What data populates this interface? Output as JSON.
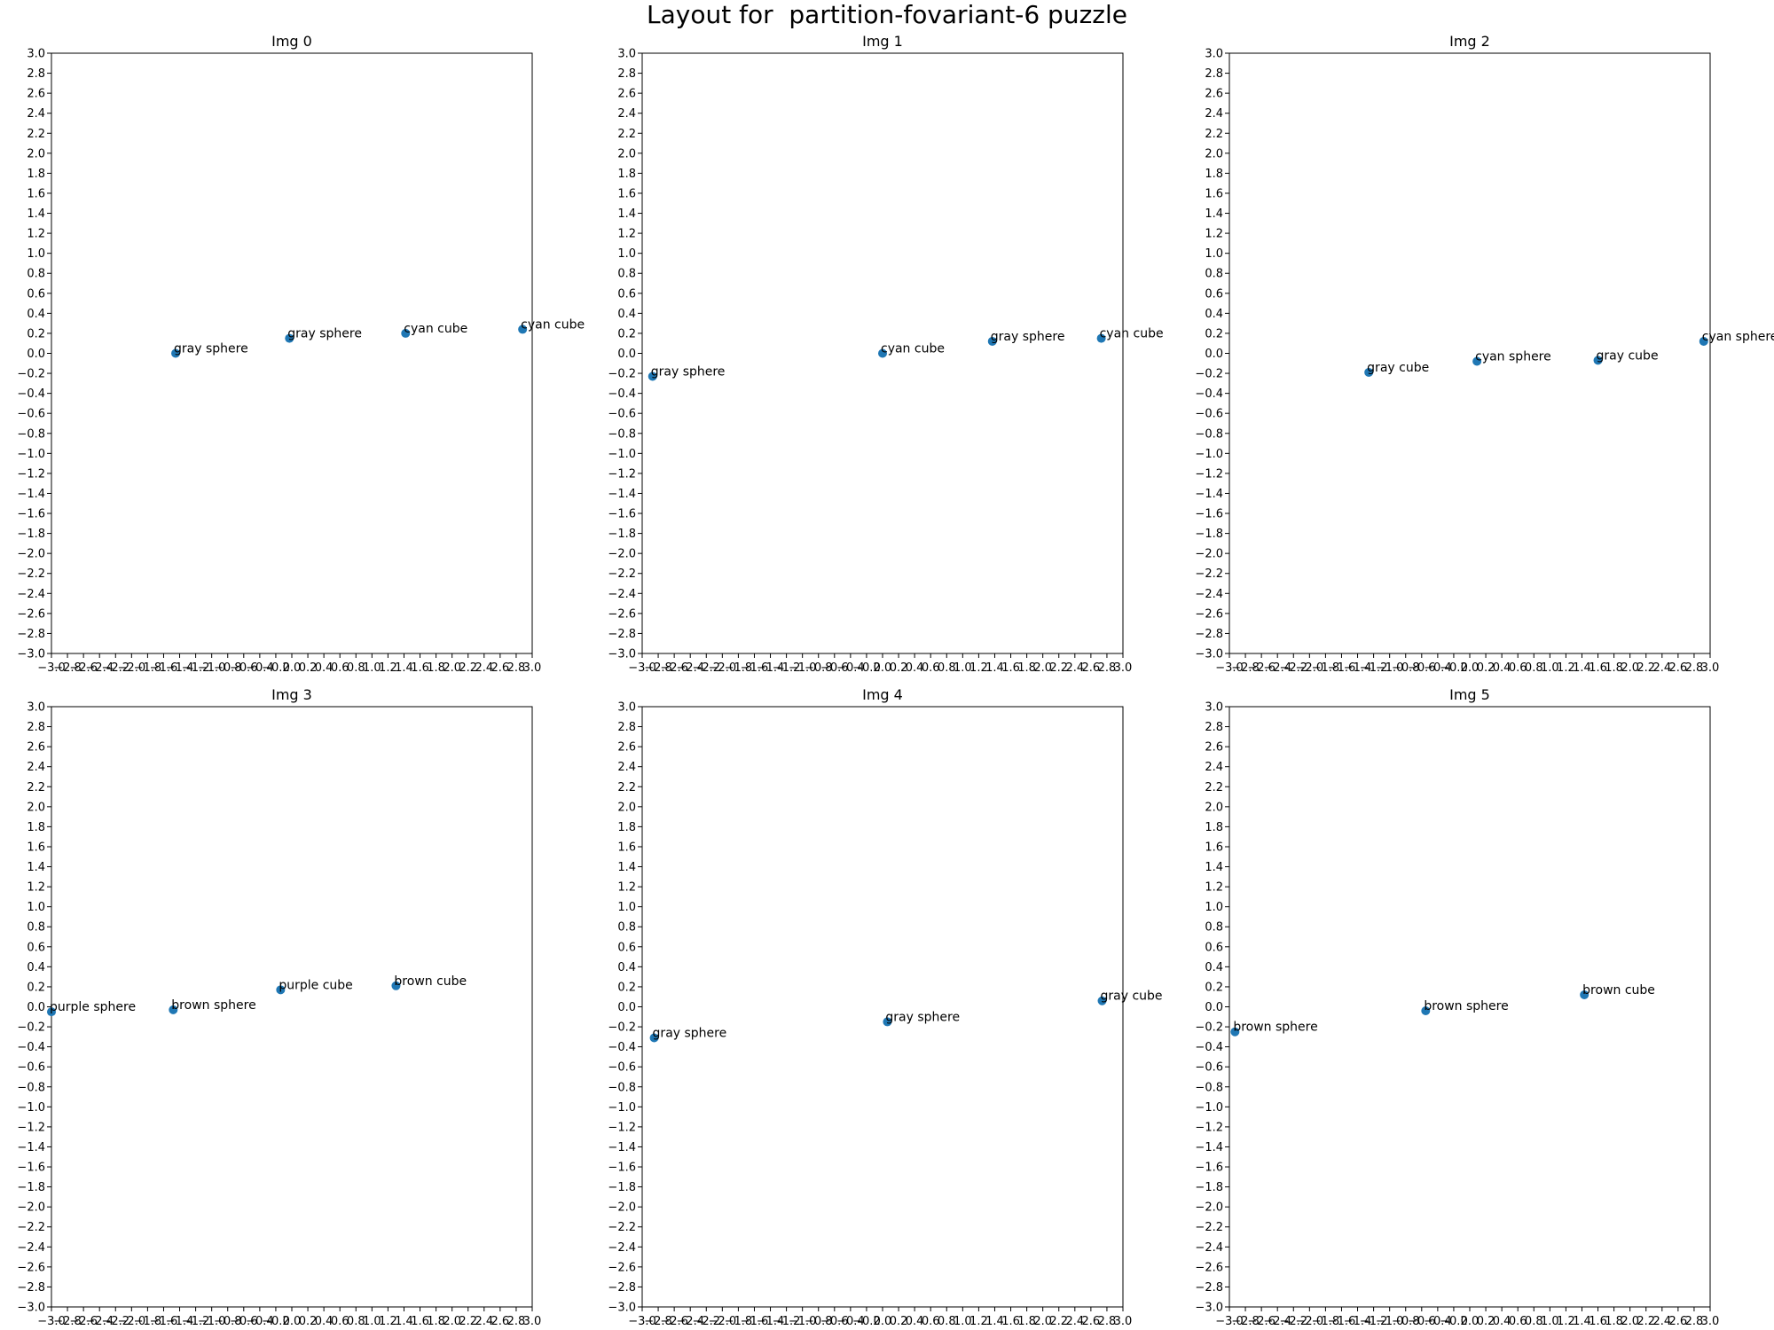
{
  "figure": {
    "title": "Layout for  partition-fovariant-6 puzzle"
  },
  "colors": {
    "marker": "#1f77b4",
    "axis": "#000000",
    "text": "#000000",
    "background": "#ffffff"
  },
  "chart_data": [
    {
      "type": "scatter",
      "title": "Img 0",
      "xlim": [
        -3.0,
        3.0
      ],
      "ylim": [
        -3.0,
        3.0
      ],
      "xticks": [
        "−3.0",
        "−2.8",
        "−2.6",
        "−2.4",
        "−2.2",
        "−2.0",
        "−1.8",
        "−1.6",
        "−1.4",
        "−1.2",
        "−1.0",
        "−0.8",
        "−0.6",
        "−0.4",
        "−0.2",
        "0.0",
        "0.2",
        "0.4",
        "0.6",
        "0.8",
        "1.0",
        "1.2",
        "1.4",
        "1.6",
        "1.8",
        "2.0",
        "2.2",
        "2.4",
        "2.6",
        "2.8",
        "3.0"
      ],
      "yticks": [
        "−3.0",
        "−2.8",
        "−2.6",
        "−2.4",
        "−2.2",
        "−2.0",
        "−1.8",
        "−1.6",
        "−1.4",
        "−1.2",
        "−1.0",
        "−0.8",
        "−0.6",
        "−0.4",
        "−0.2",
        "0.0",
        "0.2",
        "0.4",
        "0.6",
        "0.8",
        "1.0",
        "1.2",
        "1.4",
        "1.6",
        "1.8",
        "2.0",
        "2.2",
        "2.4",
        "2.6",
        "2.8",
        "3.0"
      ],
      "points": [
        {
          "x": -1.45,
          "y": 0.0,
          "label": "gray sphere"
        },
        {
          "x": -0.03,
          "y": 0.15,
          "label": "gray sphere"
        },
        {
          "x": 1.42,
          "y": 0.2,
          "label": "cyan cube"
        },
        {
          "x": 2.88,
          "y": 0.24,
          "label": "cyan cube"
        }
      ]
    },
    {
      "type": "scatter",
      "title": "Img 1",
      "xlim": [
        -3.0,
        3.0
      ],
      "ylim": [
        -3.0,
        3.0
      ],
      "xticks": [
        "−3.0",
        "−2.8",
        "−2.6",
        "−2.4",
        "−2.2",
        "−2.0",
        "−1.8",
        "−1.6",
        "−1.4",
        "−1.2",
        "−1.0",
        "−0.8",
        "−0.6",
        "−0.4",
        "−0.2",
        "0.0",
        "0.2",
        "0.4",
        "0.6",
        "0.8",
        "1.0",
        "1.2",
        "1.4",
        "1.6",
        "1.8",
        "2.0",
        "2.2",
        "2.4",
        "2.6",
        "2.8",
        "3.0"
      ],
      "yticks": [
        "−3.0",
        "−2.8",
        "−2.6",
        "−2.4",
        "−2.2",
        "−2.0",
        "−1.8",
        "−1.6",
        "−1.4",
        "−1.2",
        "−1.0",
        "−0.8",
        "−0.6",
        "−0.4",
        "−0.2",
        "0.0",
        "0.2",
        "0.4",
        "0.6",
        "0.8",
        "1.0",
        "1.2",
        "1.4",
        "1.6",
        "1.8",
        "2.0",
        "2.2",
        "2.4",
        "2.6",
        "2.8",
        "3.0"
      ],
      "points": [
        {
          "x": -2.87,
          "y": -0.23,
          "label": "gray sphere"
        },
        {
          "x": 0.0,
          "y": 0.0,
          "label": "cyan cube"
        },
        {
          "x": 1.37,
          "y": 0.12,
          "label": "gray sphere"
        },
        {
          "x": 2.73,
          "y": 0.15,
          "label": "cyan cube"
        }
      ]
    },
    {
      "type": "scatter",
      "title": "Img 2",
      "xlim": [
        -3.0,
        3.0
      ],
      "ylim": [
        -3.0,
        3.0
      ],
      "xticks": [
        "−3.0",
        "−2.8",
        "−2.6",
        "−2.4",
        "−2.2",
        "−2.0",
        "−1.8",
        "−1.6",
        "−1.4",
        "−1.2",
        "−1.0",
        "−0.8",
        "−0.6",
        "−0.4",
        "−0.2",
        "0.0",
        "0.2",
        "0.4",
        "0.6",
        "0.8",
        "1.0",
        "1.2",
        "1.4",
        "1.6",
        "1.8",
        "2.0",
        "2.2",
        "2.4",
        "2.6",
        "2.8",
        "3.0"
      ],
      "yticks": [
        "−3.0",
        "−2.8",
        "−2.6",
        "−2.4",
        "−2.2",
        "−2.0",
        "−1.8",
        "−1.6",
        "−1.4",
        "−1.2",
        "−1.0",
        "−0.8",
        "−0.6",
        "−0.4",
        "−0.2",
        "0.0",
        "0.2",
        "0.4",
        "0.6",
        "0.8",
        "1.0",
        "1.2",
        "1.4",
        "1.6",
        "1.8",
        "2.0",
        "2.2",
        "2.4",
        "2.6",
        "2.8",
        "3.0"
      ],
      "points": [
        {
          "x": -1.26,
          "y": -0.19,
          "label": "gray cube"
        },
        {
          "x": 0.09,
          "y": -0.08,
          "label": "cyan sphere"
        },
        {
          "x": 1.6,
          "y": -0.07,
          "label": "gray cube"
        },
        {
          "x": 2.92,
          "y": 0.12,
          "label": "cyan sphere"
        }
      ]
    },
    {
      "type": "scatter",
      "title": "Img 3",
      "xlim": [
        -3.0,
        3.0
      ],
      "ylim": [
        -3.0,
        3.0
      ],
      "xticks": [
        "−3.0",
        "−2.8",
        "−2.6",
        "−2.4",
        "−2.2",
        "−2.0",
        "−1.8",
        "−1.6",
        "−1.4",
        "−1.2",
        "−1.0",
        "−0.8",
        "−0.6",
        "−0.4",
        "−0.2",
        "0.0",
        "0.2",
        "0.4",
        "0.6",
        "0.8",
        "1.0",
        "1.2",
        "1.4",
        "1.6",
        "1.8",
        "2.0",
        "2.2",
        "2.4",
        "2.6",
        "2.8",
        "3.0"
      ],
      "yticks": [
        "−3.0",
        "−2.8",
        "−2.6",
        "−2.4",
        "−2.2",
        "−2.0",
        "−1.8",
        "−1.6",
        "−1.4",
        "−1.2",
        "−1.0",
        "−0.8",
        "−0.6",
        "−0.4",
        "−0.2",
        "0.0",
        "0.2",
        "0.4",
        "0.6",
        "0.8",
        "1.0",
        "1.2",
        "1.4",
        "1.6",
        "1.8",
        "2.0",
        "2.2",
        "2.4",
        "2.6",
        "2.8",
        "3.0"
      ],
      "points": [
        {
          "x": -3.0,
          "y": -0.05,
          "label": "purple sphere"
        },
        {
          "x": -1.48,
          "y": -0.03,
          "label": "brown sphere"
        },
        {
          "x": -0.14,
          "y": 0.17,
          "label": "purple cube"
        },
        {
          "x": 1.3,
          "y": 0.21,
          "label": "brown cube"
        }
      ]
    },
    {
      "type": "scatter",
      "title": "Img 4",
      "xlim": [
        -3.0,
        3.0
      ],
      "ylim": [
        -3.0,
        3.0
      ],
      "xticks": [
        "−3.0",
        "−2.8",
        "−2.6",
        "−2.4",
        "−2.2",
        "−2.0",
        "−1.8",
        "−1.6",
        "−1.4",
        "−1.2",
        "−1.0",
        "−0.8",
        "−0.6",
        "−0.4",
        "−0.2",
        "0.0",
        "0.2",
        "0.4",
        "0.6",
        "0.8",
        "1.0",
        "1.2",
        "1.4",
        "1.6",
        "1.8",
        "2.0",
        "2.2",
        "2.4",
        "2.6",
        "2.8",
        "3.0"
      ],
      "yticks": [
        "−3.0",
        "−2.8",
        "−2.6",
        "−2.4",
        "−2.2",
        "−2.0",
        "−1.8",
        "−1.6",
        "−1.4",
        "−1.2",
        "−1.0",
        "−0.8",
        "−0.6",
        "−0.4",
        "−0.2",
        "0.0",
        "0.2",
        "0.4",
        "0.6",
        "0.8",
        "1.0",
        "1.2",
        "1.4",
        "1.6",
        "1.8",
        "2.0",
        "2.2",
        "2.4",
        "2.6",
        "2.8",
        "3.0"
      ],
      "points": [
        {
          "x": -2.85,
          "y": -0.31,
          "label": "gray sphere"
        },
        {
          "x": 0.06,
          "y": -0.15,
          "label": "gray sphere"
        },
        {
          "x": 2.74,
          "y": 0.06,
          "label": "gray cube"
        }
      ]
    },
    {
      "type": "scatter",
      "title": "Img 5",
      "xlim": [
        -3.0,
        3.0
      ],
      "ylim": [
        -3.0,
        3.0
      ],
      "xticks": [
        "−3.0",
        "−2.8",
        "−2.6",
        "−2.4",
        "−2.2",
        "−2.0",
        "−1.8",
        "−1.6",
        "−1.4",
        "−1.2",
        "−1.0",
        "−0.8",
        "−0.6",
        "−0.4",
        "−0.2",
        "0.0",
        "0.2",
        "0.4",
        "0.6",
        "0.8",
        "1.0",
        "1.2",
        "1.4",
        "1.6",
        "1.8",
        "2.0",
        "2.2",
        "2.4",
        "2.6",
        "2.8",
        "3.0"
      ],
      "yticks": [
        "−3.0",
        "−2.8",
        "−2.6",
        "−2.4",
        "−2.2",
        "−2.0",
        "−1.8",
        "−1.6",
        "−1.4",
        "−1.2",
        "−1.0",
        "−0.8",
        "−0.6",
        "−0.4",
        "−0.2",
        "0.0",
        "0.2",
        "0.4",
        "0.6",
        "0.8",
        "1.0",
        "1.2",
        "1.4",
        "1.6",
        "1.8",
        "2.0",
        "2.2",
        "2.4",
        "2.6",
        "2.8",
        "3.0"
      ],
      "points": [
        {
          "x": -2.93,
          "y": -0.25,
          "label": "brown sphere"
        },
        {
          "x": -0.55,
          "y": -0.04,
          "label": "brown sphere"
        },
        {
          "x": 1.43,
          "y": 0.12,
          "label": "brown cube"
        }
      ]
    }
  ]
}
